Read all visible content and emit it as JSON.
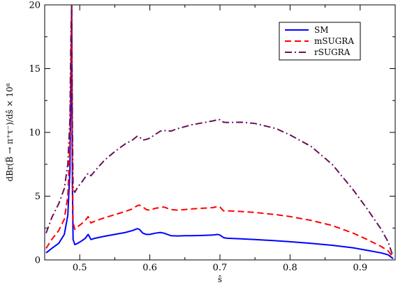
{
  "chart_data": {
    "type": "line",
    "title": "",
    "xlabel": "ŝ",
    "ylabel": "dBr(B̅ → π⁺τ⁻)/dŝ × 10⁸",
    "xlim": [
      0.45,
      0.95
    ],
    "ylim": [
      0,
      20
    ],
    "x_ticks": [
      "0.5",
      "0.6",
      "0.7",
      "0.8",
      "0.9"
    ],
    "x_tick_values": [
      0.5,
      0.6,
      0.7,
      0.8,
      0.9
    ],
    "y_ticks": [
      "0",
      "5",
      "10",
      "15",
      "20"
    ],
    "y_tick_values": [
      0,
      5,
      10,
      15,
      20
    ],
    "legend_position": "top-right",
    "grid": false,
    "series": [
      {
        "name": "SM",
        "color": "#0000ff",
        "dash": "solid",
        "x": [
          0.452,
          0.46,
          0.47,
          0.478,
          0.483,
          0.486,
          0.4875,
          0.4885,
          0.4895,
          0.4905,
          0.493,
          0.497,
          0.503,
          0.508,
          0.512,
          0.516,
          0.522,
          0.535,
          0.55,
          0.565,
          0.575,
          0.582,
          0.585,
          0.59,
          0.595,
          0.6,
          0.608,
          0.615,
          0.62,
          0.63,
          0.64,
          0.65,
          0.66,
          0.675,
          0.69,
          0.697,
          0.7,
          0.705,
          0.71,
          0.73,
          0.75,
          0.78,
          0.8,
          0.83,
          0.86,
          0.89,
          0.91,
          0.93,
          0.94,
          0.947
        ],
        "y": [
          0.55,
          0.9,
          1.3,
          2.0,
          3.5,
          7.0,
          14.0,
          20.0,
          6.0,
          1.6,
          1.2,
          1.3,
          1.5,
          1.7,
          2.0,
          1.6,
          1.7,
          1.85,
          2.0,
          2.15,
          2.3,
          2.45,
          2.4,
          2.1,
          2.0,
          2.0,
          2.1,
          2.15,
          2.1,
          1.9,
          1.88,
          1.9,
          1.9,
          1.92,
          1.95,
          2.0,
          1.95,
          1.75,
          1.7,
          1.65,
          1.6,
          1.5,
          1.43,
          1.3,
          1.15,
          0.95,
          0.75,
          0.55,
          0.4,
          0.1
        ]
      },
      {
        "name": "mSUGRA",
        "color": "#ff0000",
        "dash": "dashed",
        "x": [
          0.452,
          0.46,
          0.47,
          0.478,
          0.483,
          0.486,
          0.4875,
          0.4885,
          0.4895,
          0.4905,
          0.493,
          0.497,
          0.503,
          0.508,
          0.512,
          0.516,
          0.522,
          0.535,
          0.55,
          0.565,
          0.575,
          0.582,
          0.585,
          0.59,
          0.595,
          0.6,
          0.608,
          0.615,
          0.62,
          0.63,
          0.64,
          0.65,
          0.66,
          0.675,
          0.69,
          0.697,
          0.7,
          0.705,
          0.71,
          0.73,
          0.75,
          0.78,
          0.8,
          0.83,
          0.86,
          0.89,
          0.91,
          0.93,
          0.94,
          0.947
        ],
        "y": [
          0.9,
          1.6,
          2.3,
          3.2,
          5.0,
          9.0,
          16.0,
          20.0,
          8.0,
          2.9,
          2.4,
          2.6,
          2.85,
          3.1,
          3.4,
          2.9,
          3.05,
          3.3,
          3.55,
          3.8,
          4.0,
          4.25,
          4.3,
          4.15,
          3.95,
          3.9,
          4.05,
          4.1,
          4.15,
          3.95,
          3.9,
          3.95,
          4.0,
          4.05,
          4.1,
          4.2,
          4.15,
          3.85,
          3.85,
          3.8,
          3.72,
          3.55,
          3.4,
          3.1,
          2.7,
          2.1,
          1.6,
          1.05,
          0.7,
          0.2
        ]
      },
      {
        "name": "rSUGRA",
        "color": "#6a0f5a",
        "dash": "dashdot",
        "x": [
          0.452,
          0.46,
          0.47,
          0.478,
          0.483,
          0.486,
          0.4875,
          0.4885,
          0.4895,
          0.4905,
          0.493,
          0.497,
          0.503,
          0.508,
          0.512,
          0.516,
          0.522,
          0.535,
          0.55,
          0.565,
          0.575,
          0.582,
          0.585,
          0.59,
          0.595,
          0.6,
          0.608,
          0.615,
          0.62,
          0.63,
          0.64,
          0.65,
          0.66,
          0.675,
          0.69,
          0.697,
          0.7,
          0.705,
          0.71,
          0.73,
          0.75,
          0.78,
          0.8,
          0.83,
          0.86,
          0.89,
          0.91,
          0.93,
          0.94,
          0.947
        ],
        "y": [
          2.1,
          3.3,
          4.4,
          5.6,
          7.5,
          11.0,
          18.0,
          20.0,
          11.0,
          5.6,
          5.3,
          5.7,
          6.1,
          6.5,
          6.8,
          6.6,
          7.0,
          7.8,
          8.5,
          9.1,
          9.4,
          9.7,
          9.65,
          9.4,
          9.45,
          9.55,
          9.85,
          10.1,
          10.15,
          10.1,
          10.3,
          10.45,
          10.6,
          10.75,
          10.9,
          11.0,
          11.0,
          10.8,
          10.78,
          10.8,
          10.7,
          10.3,
          9.8,
          8.9,
          7.5,
          5.5,
          4.0,
          2.4,
          1.4,
          0.25
        ]
      }
    ]
  }
}
